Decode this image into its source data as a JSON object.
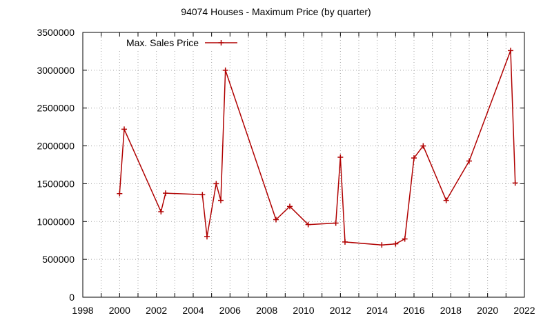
{
  "chart_data": {
    "type": "line",
    "title": "94074 Houses - Maximum Price (by quarter)",
    "xlabel": "",
    "ylabel": "",
    "xlim": [
      1998,
      2022
    ],
    "ylim": [
      0,
      3500000
    ],
    "x_ticks": [
      "1998",
      "2000",
      "2002",
      "2004",
      "2006",
      "2008",
      "2010",
      "2012",
      "2014",
      "2016",
      "2018",
      "2020",
      "2022"
    ],
    "y_ticks": [
      "0",
      "500000",
      "1000000",
      "1500000",
      "2000000",
      "2500000",
      "3000000",
      "3500000"
    ],
    "grid": true,
    "legend_position": "top-left",
    "series": [
      {
        "name": "Max. Sales Price",
        "color": "#b00000",
        "marker": "plus",
        "points": [
          [
            2000.0,
            1370000
          ],
          [
            2000.25,
            2220000
          ],
          [
            2002.25,
            1130000
          ],
          [
            2002.5,
            1375000
          ],
          [
            2004.5,
            1355000
          ],
          [
            2004.75,
            800000
          ],
          [
            2005.25,
            1500000
          ],
          [
            2005.5,
            1280000
          ],
          [
            2005.75,
            3000000
          ],
          [
            2008.5,
            1025000
          ],
          [
            2009.25,
            1200000
          ],
          [
            2010.25,
            960000
          ],
          [
            2011.75,
            980000
          ],
          [
            2012.0,
            1850000
          ],
          [
            2012.25,
            730000
          ],
          [
            2014.25,
            690000
          ],
          [
            2015.0,
            705000
          ],
          [
            2015.5,
            770000
          ],
          [
            2016.0,
            1840000
          ],
          [
            2016.5,
            2000000
          ],
          [
            2017.75,
            1280000
          ],
          [
            2019.0,
            1800000
          ],
          [
            2021.25,
            3260000
          ],
          [
            2021.5,
            1510000
          ]
        ]
      }
    ]
  }
}
